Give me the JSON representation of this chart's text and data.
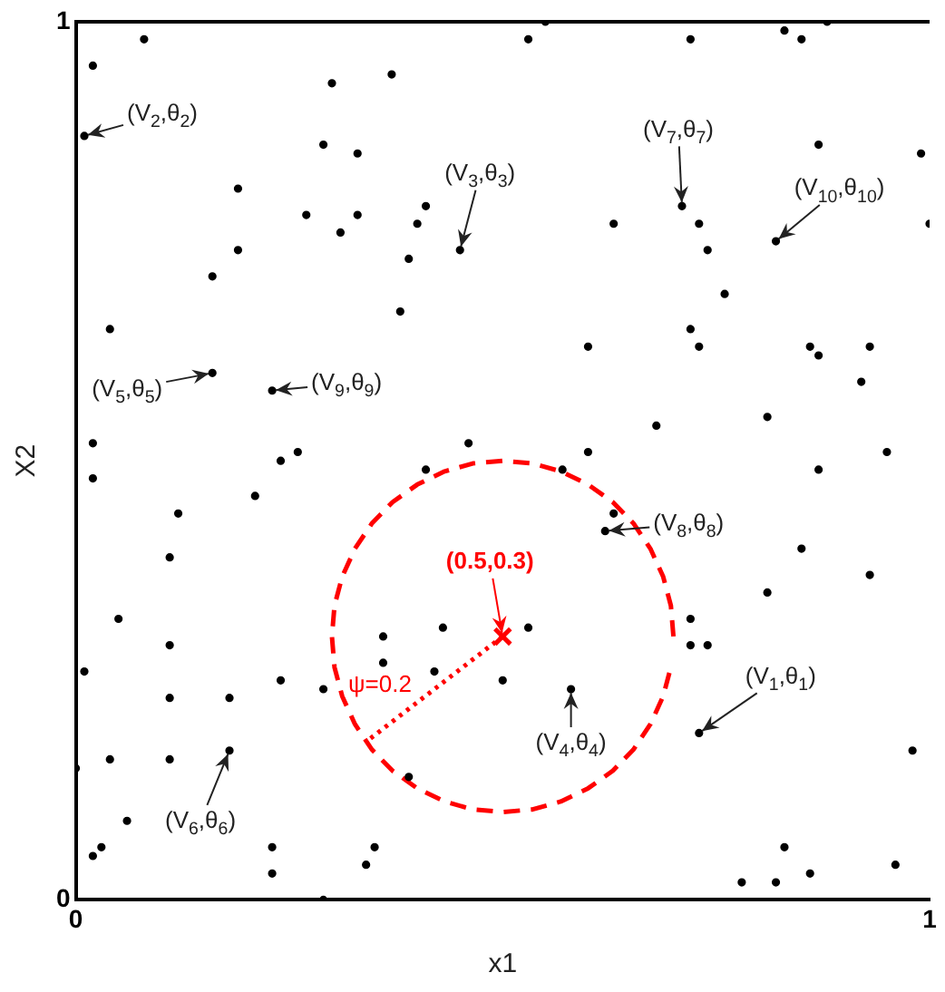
{
  "chart_data": {
    "type": "scatter",
    "xlabel": "x1",
    "ylabel": "X2",
    "xlim": [
      0,
      1
    ],
    "ylim": [
      0,
      1
    ],
    "xticks": [
      0,
      1
    ],
    "yticks": [
      0,
      1
    ],
    "grid": false,
    "legend": false,
    "series": [
      {
        "type": "scatter",
        "color": "#000000",
        "marker": "circle",
        "x": [
          0.08,
          0.02,
          0.3,
          0.01,
          0.29,
          0.33,
          0.19,
          0.27,
          0.33,
          0.31,
          0.19,
          0.16,
          0.04,
          0.16,
          0.23,
          0.02,
          0.26,
          0.24,
          0.55,
          0.53,
          0.37,
          0.41,
          0.4,
          0.63,
          0.45,
          0.39,
          0.38,
          0.6,
          0.46,
          0.6,
          0.72,
          0.83,
          0.85,
          0.88,
          0.87,
          0.99,
          0.71,
          0.73,
          0.74,
          0.82,
          1.0,
          0.76,
          0.72,
          0.73,
          0.86,
          0.87,
          0.93,
          0.92,
          0.68,
          0.81,
          0.95,
          0.02,
          0.12,
          0.21,
          0.11,
          0.05,
          0.11,
          0.01,
          0.24,
          0.29,
          0.11,
          0.18,
          0.0,
          0.04,
          0.11,
          0.18,
          0.06,
          0.03,
          0.02,
          0.23,
          0.23,
          0.29,
          0.34,
          0.35,
          0.41,
          0.57,
          0.63,
          0.62,
          0.53,
          0.43,
          0.36,
          0.36,
          0.42,
          0.5,
          0.58,
          0.39,
          0.87,
          0.85,
          0.93,
          0.81,
          0.72,
          0.72,
          0.74,
          0.73,
          0.98,
          0.83,
          0.78,
          0.82,
          0.86,
          0.96
        ],
        "values": [
          0.98,
          0.95,
          0.93,
          0.87,
          0.86,
          0.85,
          0.81,
          0.78,
          0.78,
          0.76,
          0.74,
          0.71,
          0.65,
          0.6,
          0.58,
          0.52,
          0.51,
          0.5,
          1.0,
          0.98,
          0.94,
          0.79,
          0.77,
          0.77,
          0.74,
          0.73,
          0.67,
          0.63,
          0.52,
          0.51,
          0.98,
          0.99,
          0.98,
          1.0,
          0.86,
          0.85,
          0.79,
          0.77,
          0.74,
          0.75,
          0.77,
          0.69,
          0.65,
          0.63,
          0.63,
          0.62,
          0.63,
          0.59,
          0.54,
          0.55,
          0.51,
          0.48,
          0.44,
          0.46,
          0.39,
          0.32,
          0.29,
          0.26,
          0.25,
          0.24,
          0.23,
          0.23,
          0.15,
          0.16,
          0.16,
          0.17,
          0.09,
          0.06,
          0.05,
          0.06,
          0.03,
          0.0,
          0.04,
          0.06,
          0.49,
          0.49,
          0.44,
          0.42,
          0.31,
          0.31,
          0.3,
          0.27,
          0.26,
          0.25,
          0.24,
          0.14,
          0.49,
          0.4,
          0.37,
          0.35,
          0.32,
          0.29,
          0.29,
          0.19,
          0.17,
          0.06,
          0.02,
          0.02,
          0.03,
          0.04
        ]
      },
      {
        "type": "line",
        "color": "#ff0000",
        "marker": "none",
        "line_style": "dashed",
        "x": [
          0.7,
          0.697,
          0.688,
          0.673,
          0.653,
          0.629,
          0.6,
          0.568,
          0.535,
          0.5,
          0.465,
          0.432,
          0.4,
          0.371,
          0.347,
          0.327,
          0.312,
          0.303,
          0.3,
          0.303,
          0.312,
          0.327,
          0.347,
          0.371,
          0.4,
          0.432,
          0.465,
          0.5,
          0.535,
          0.568,
          0.6,
          0.629,
          0.653,
          0.673,
          0.688,
          0.697
        ],
        "values": [
          0.3,
          0.335,
          0.368,
          0.4,
          0.429,
          0.453,
          0.473,
          0.488,
          0.497,
          0.5,
          0.497,
          0.488,
          0.473,
          0.453,
          0.429,
          0.4,
          0.368,
          0.335,
          0.3,
          0.265,
          0.232,
          0.2,
          0.171,
          0.147,
          0.127,
          0.112,
          0.103,
          0.1,
          0.103,
          0.112,
          0.127,
          0.147,
          0.171,
          0.2,
          0.232,
          0.265
        ]
      },
      {
        "type": "line",
        "color": "#ff0000",
        "marker": "none",
        "line_style": "dotted",
        "x": [
          0.5,
          0.34
        ],
        "values": [
          0.3,
          0.18
        ]
      },
      {
        "type": "scatter",
        "color": "#ff0000",
        "marker": "cross",
        "x": [
          0.5
        ],
        "values": [
          0.3
        ]
      }
    ],
    "annotations": [
      {
        "text": "(V$_{1}$,θ$_{1}$)",
        "x": 0.73,
        "y": 0.19
      },
      {
        "text": "(V$_{2}$,θ$_{2}$)",
        "x": 0.01,
        "y": 0.87
      },
      {
        "text": "(V$_{3}$,θ$_{3}$)",
        "x": 0.45,
        "y": 0.74
      },
      {
        "text": "(V$_{4}$,θ$_{4}$)",
        "x": 0.58,
        "y": 0.24
      },
      {
        "text": "(V$_{5}$,θ$_{5}$)",
        "x": 0.16,
        "y": 0.6
      },
      {
        "text": "(V$_{6}$,θ$_{6}$)",
        "x": 0.18,
        "y": 0.17
      },
      {
        "text": "(V$_{7}$,θ$_{7}$)",
        "x": 0.71,
        "y": 0.79
      },
      {
        "text": "(V$_{8}$,θ$_{8}$)",
        "x": 0.62,
        "y": 0.42
      },
      {
        "text": "(V$_{9}$,θ$_{9}$)",
        "x": 0.23,
        "y": 0.58
      },
      {
        "text": "(V$_{10}$,θ$_{10}$)",
        "x": 0.82,
        "y": 0.75
      },
      {
        "text": "(0.5,0.3)",
        "x": 0.5,
        "y": 0.3
      },
      {
        "text": "ψ=0.2",
        "x": 0.42,
        "y": 0.24
      }
    ]
  }
}
